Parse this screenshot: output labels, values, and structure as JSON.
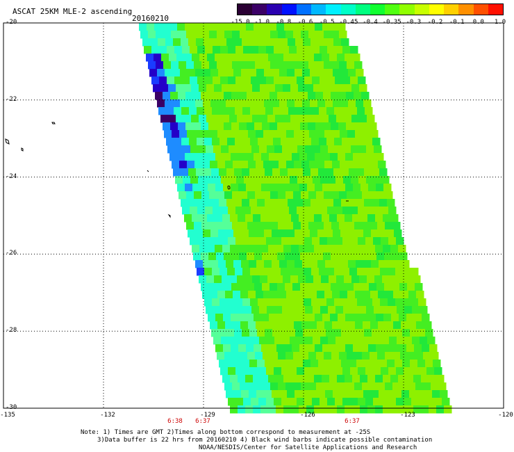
{
  "header": {
    "title": "ASCAT 25KM MLE-2 ascending",
    "date": "20160210"
  },
  "colorbar": {
    "colors": [
      "#2a0033",
      "#3b0066",
      "#2a00b0",
      "#0010ff",
      "#0070ff",
      "#00b8ff",
      "#00f0ff",
      "#00ffc8",
      "#00ff80",
      "#10ff30",
      "#50ff10",
      "#90ff00",
      "#c8ff00",
      "#ffff00",
      "#ffd000",
      "#ff9000",
      "#ff5000",
      "#ff1000"
    ],
    "labels": [
      "-15.0",
      "-1.0",
      "-0.8",
      "-0.6",
      "-0.5",
      "-0.45",
      "-0.4",
      "-0.35",
      "-0.3",
      "-0.2",
      "-0.1",
      "0.0",
      "1.0"
    ]
  },
  "axes": {
    "y_labels": [
      "-20",
      "-22",
      "-24",
      "-26",
      "-28",
      "-30"
    ],
    "x_labels": [
      "-135",
      "-132",
      "-129",
      "-126",
      "-123",
      "-120"
    ]
  },
  "times": [
    "6:38",
    "6:37",
    "6:37"
  ],
  "notes": {
    "line1": "Note: 1) Times are GMT 2)Times along bottom correspond to measurement at -25S",
    "line2": "3)Data buffer is 22 hrs from 20160210 4) Black wind barbs indicate possible contamination",
    "line3": "NOAA/NESDIS/Center for Satellite Applications and Research"
  },
  "map_colors": {
    "base": "#8ef000",
    "green": "#44ee22",
    "bright_green": "#22e83a",
    "cyan": "#22ffd0",
    "aqua": "#55ff99",
    "blue": "#1a3cff",
    "light_blue": "#1e8cff",
    "deep_blue": "#2400c8",
    "purple": "#3a0066"
  }
}
